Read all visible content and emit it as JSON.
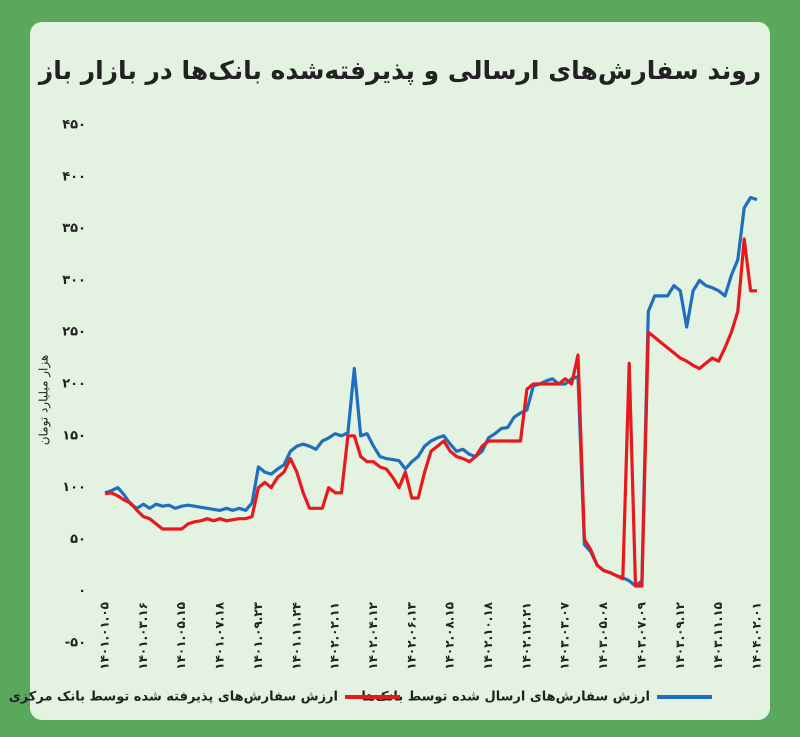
{
  "chart_data": {
    "type": "line",
    "title": "روند سفارش‌های ارسالی و پذیرفته‌شده بانک‌ها در بازار باز",
    "y_label": "هزار میلیارد تومان",
    "categories": [
      "۱۴۰۱.۰۱.۰۵",
      null,
      null,
      null,
      null,
      null,
      "۱۴۰۱.۰۳.۱۶",
      null,
      null,
      null,
      null,
      null,
      "۱۴۰۱.۰۵.۱۵",
      null,
      null,
      null,
      null,
      null,
      "۱۴۰۱.۰۷.۱۸",
      null,
      null,
      null,
      null,
      null,
      "۱۴۰۱.۰۹.۲۳",
      null,
      null,
      null,
      null,
      null,
      "۱۴۰۱.۱۱.۲۴",
      null,
      null,
      null,
      null,
      null,
      "۱۴۰۲.۰۲.۱۱",
      null,
      null,
      null,
      null,
      null,
      "۱۴۰۲.۰۴.۱۲",
      null,
      null,
      null,
      null,
      null,
      "۱۴۰۲.۰۶.۱۳",
      null,
      null,
      null,
      null,
      null,
      "۱۴۰۲.۰۸.۱۵",
      null,
      null,
      null,
      null,
      null,
      "۱۴۰۲.۱۰.۱۸",
      null,
      null,
      null,
      null,
      null,
      "۱۴۰۲.۱۲.۲۱",
      null,
      null,
      null,
      null,
      null,
      "۱۴۰۳.۰۳.۰۷",
      null,
      null,
      null,
      null,
      null,
      "۱۴۰۳.۰۵.۰۸",
      null,
      null,
      null,
      null,
      null,
      "۱۴۰۳.۰۷.۰۹",
      null,
      null,
      null,
      null,
      null,
      "۱۴۰۳.۰۹.۱۲",
      null,
      null,
      null,
      null,
      null,
      "۱۴۰۳.۱۱.۱۵",
      null,
      null,
      null,
      null,
      null,
      "۱۴۰۴.۰۲.۰۱"
    ],
    "series": [
      {
        "name": "ارزش سفارش‌های ارسال شده توسط بانک‌ها",
        "color": "#1f6fc0",
        "values": [
          95,
          97,
          100,
          93,
          84,
          80,
          84,
          80,
          84,
          82,
          83,
          80,
          82,
          83,
          82,
          81,
          80,
          79,
          78,
          80,
          78,
          80,
          78,
          85,
          120,
          115,
          113,
          118,
          122,
          135,
          140,
          142,
          140,
          137,
          145,
          148,
          152,
          150,
          153,
          215,
          150,
          152,
          140,
          130,
          128,
          127,
          126,
          118,
          125,
          130,
          140,
          145,
          148,
          150,
          142,
          135,
          137,
          132,
          130,
          135,
          148,
          152,
          157,
          158,
          168,
          172,
          175,
          198,
          200,
          203,
          205,
          200,
          200,
          205,
          207,
          45,
          38,
          25,
          20,
          18,
          15,
          13,
          10,
          5,
          10,
          270,
          285,
          285,
          285,
          295,
          290,
          255,
          290,
          300,
          295,
          293,
          290,
          285,
          305,
          320,
          370,
          380,
          378
        ]
      },
      {
        "name": "ارزش سفارش‌های پذیرفته شده توسط بانک مرکزی",
        "color": "#e8191c",
        "values": [
          94,
          95,
          92,
          88,
          85,
          78,
          72,
          70,
          65,
          60,
          60,
          60,
          60,
          65,
          67,
          68,
          70,
          68,
          70,
          68,
          69,
          70,
          70,
          72,
          100,
          105,
          100,
          110,
          115,
          128,
          115,
          95,
          80,
          80,
          80,
          100,
          95,
          95,
          150,
          150,
          130,
          125,
          125,
          120,
          118,
          110,
          100,
          115,
          90,
          90,
          115,
          135,
          140,
          145,
          135,
          130,
          128,
          125,
          130,
          140,
          145,
          145,
          145,
          145,
          145,
          145,
          195,
          200,
          200,
          200,
          200,
          200,
          205,
          200,
          228,
          50,
          40,
          25,
          20,
          18,
          15,
          12,
          220,
          5,
          5,
          250,
          245,
          240,
          235,
          230,
          225,
          222,
          218,
          215,
          220,
          225,
          222,
          235,
          250,
          270,
          340,
          290,
          290
        ]
      }
    ],
    "ylim": [
      -50,
      450
    ],
    "yticks": [
      {
        "value": -50,
        "label": "-۵۰"
      },
      {
        "value": 0,
        "label": "۰"
      },
      {
        "value": 50,
        "label": "۵۰"
      },
      {
        "value": 100,
        "label": "۱۰۰"
      },
      {
        "value": 150,
        "label": "۱۵۰"
      },
      {
        "value": 200,
        "label": "۲۰۰"
      },
      {
        "value": 250,
        "label": "۲۵۰"
      },
      {
        "value": 300,
        "label": "۳۰۰"
      },
      {
        "value": 350,
        "label": "۳۵۰"
      },
      {
        "value": 400,
        "label": "۴۰۰"
      },
      {
        "value": 450,
        "label": "۴۵۰"
      }
    ],
    "legend": "bottom"
  }
}
